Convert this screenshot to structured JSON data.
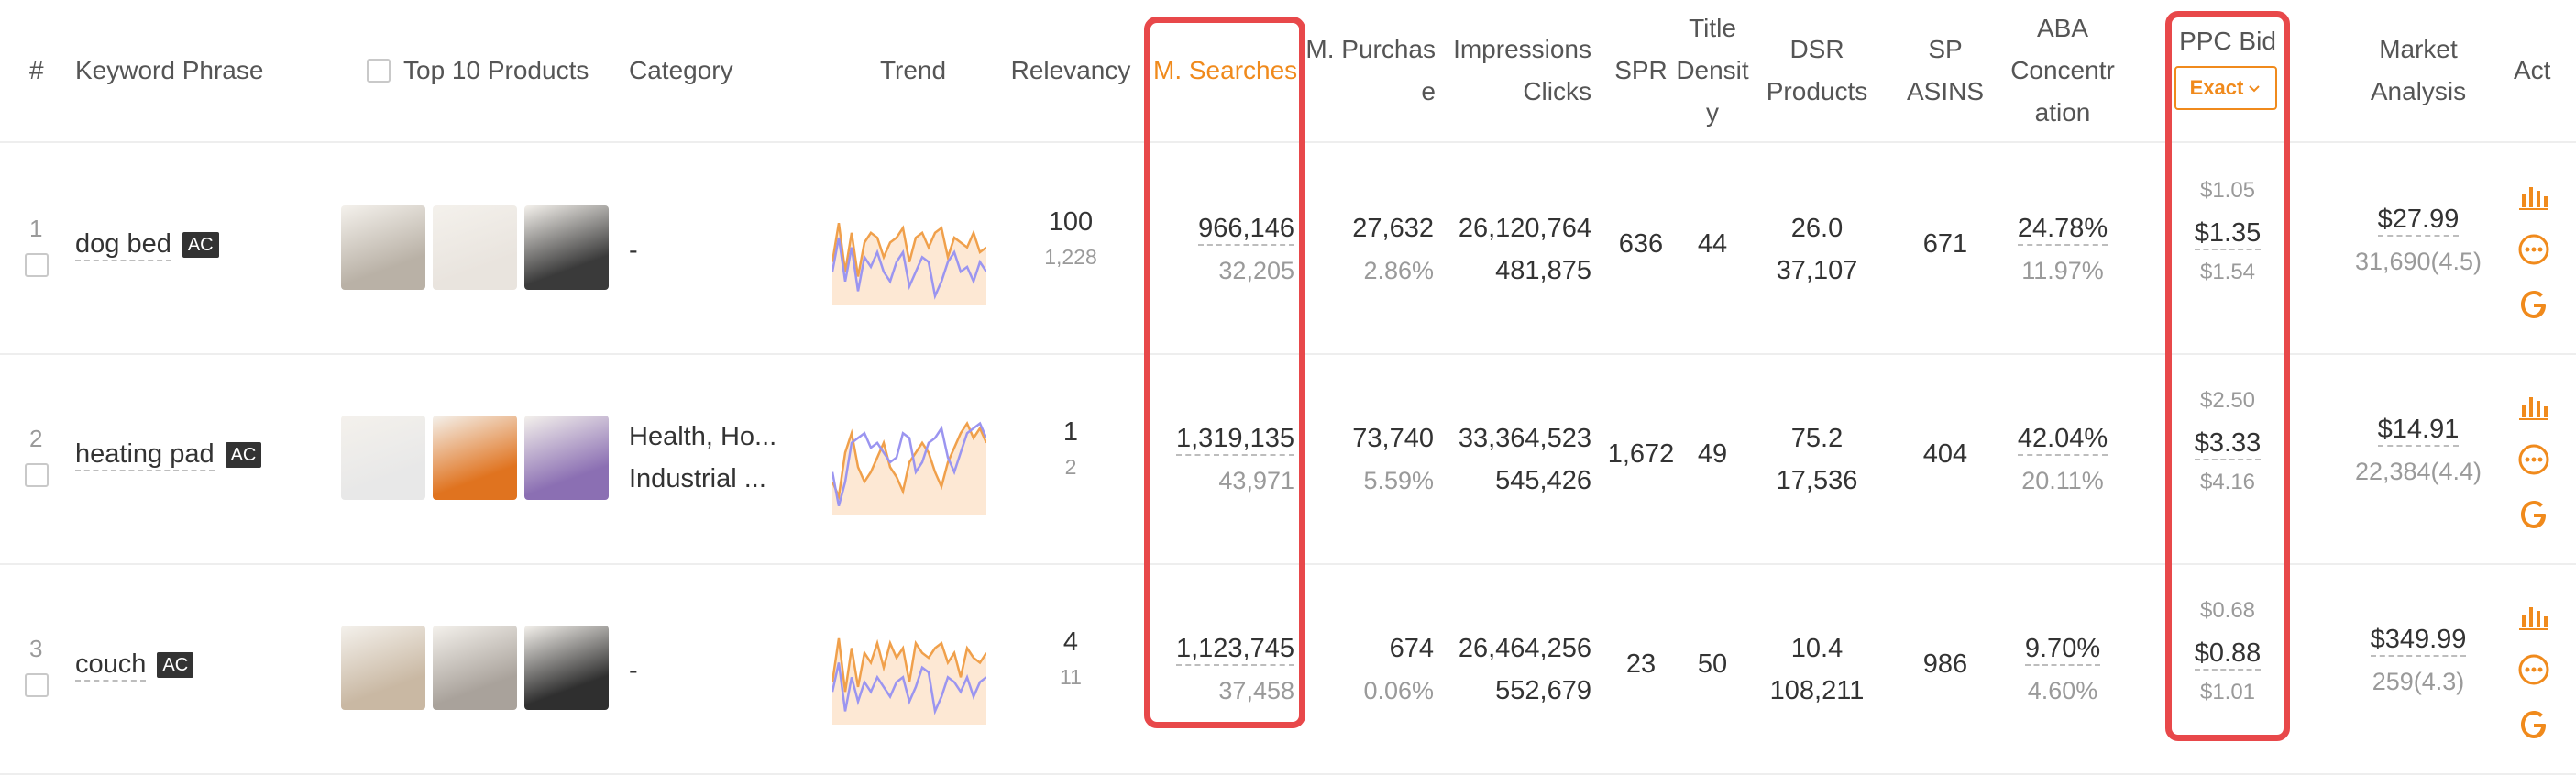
{
  "headers": {
    "index": "#",
    "keyword": "Keyword Phrase",
    "top10": "Top 10 Products",
    "category": "Category",
    "trend": "Trend",
    "relevancy": "Relevancy",
    "msearches": "M. Searches",
    "mpurchase_1": "M. Purchas",
    "mpurchase_2": "e",
    "impressions": "Impressions",
    "clicks": "Clicks",
    "spr": "SPR",
    "title_1": "Title",
    "title_2": "Densit",
    "title_3": "y",
    "dsr": "DSR",
    "products": "Products",
    "sp": "SP",
    "asins": "ASINS",
    "aba_1": "ABA",
    "aba_2": "Concentr",
    "aba_3": "ation",
    "ppc": "PPC Bid",
    "exact": "Exact",
    "market_1": "Market",
    "market_2": "Analysis",
    "act": "Act"
  },
  "colors": {
    "accent_orange": "#f08a1c",
    "highlight_red": "#e8484a",
    "trend_orange": "#f0a04b",
    "trend_purple": "#9b95f0",
    "trend_fill": "#fde8d4"
  },
  "rows": [
    {
      "index": "1",
      "keyword": "dog bed",
      "badge": "AC",
      "category_1": "-",
      "category_2": "",
      "relevancy": "100",
      "relevancy_sub": "1,228",
      "msearches": "966,146",
      "msearches_sub": "32,205",
      "mpurchase": "27,632",
      "mpurchase_rate": "2.86%",
      "impressions": "26,120,764",
      "clicks": "481,875",
      "spr": "636",
      "title_density": "44",
      "dsr": "26.0",
      "products": "37,107",
      "sp_asins": "671",
      "aba": "24.78%",
      "aba_sub": "11.97%",
      "ppc_low": "$1.05",
      "ppc_mid": "$1.35",
      "ppc_high": "$1.54",
      "market_price": "$27.99",
      "market_reviews": "31,690(4.5)"
    },
    {
      "index": "2",
      "keyword": "heating pad",
      "badge": "AC",
      "category_1": "Health, Ho...",
      "category_2": "Industrial ...",
      "relevancy": "1",
      "relevancy_sub": "2",
      "msearches": "1,319,135",
      "msearches_sub": "43,971",
      "mpurchase": "73,740",
      "mpurchase_rate": "5.59%",
      "impressions": "33,364,523",
      "clicks": "545,426",
      "spr": "1,672",
      "title_density": "49",
      "dsr": "75.2",
      "products": "17,536",
      "sp_asins": "404",
      "aba": "42.04%",
      "aba_sub": "20.11%",
      "ppc_low": "$2.50",
      "ppc_mid": "$3.33",
      "ppc_high": "$4.16",
      "market_price": "$14.91",
      "market_reviews": "22,384(4.4)"
    },
    {
      "index": "3",
      "keyword": "couch",
      "badge": "AC",
      "category_1": "-",
      "category_2": "",
      "relevancy": "4",
      "relevancy_sub": "11",
      "msearches": "1,123,745",
      "msearches_sub": "37,458",
      "mpurchase": "674",
      "mpurchase_rate": "0.06%",
      "impressions": "26,464,256",
      "clicks": "552,679",
      "spr": "23",
      "title_density": "50",
      "dsr": "10.4",
      "products": "108,211",
      "sp_asins": "986",
      "aba": "9.70%",
      "aba_sub": "4.60%",
      "ppc_low": "$0.68",
      "ppc_mid": "$0.88",
      "ppc_high": "$1.01",
      "market_price": "$349.99",
      "market_reviews": "259(4.3)"
    }
  ],
  "icons": [
    "bar-chart-icon",
    "more-circle-icon",
    "google-icon",
    "chevron-down-icon"
  ]
}
